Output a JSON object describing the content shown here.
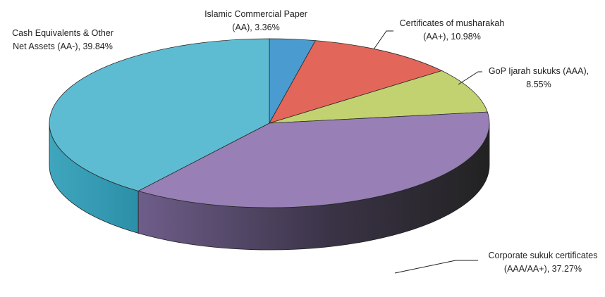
{
  "chart_data": {
    "type": "pie",
    "style": "3d",
    "legend": "none",
    "slices": [
      {
        "name": "Islamic Commercial Paper",
        "rating": "(AA)",
        "value": 3.36,
        "label_line1": "Islamic Commercial Paper",
        "label_line2": "(AA), 3.36%",
        "color": "#4A9BD0"
      },
      {
        "name": "Certificates of musharakah",
        "rating": "(AA+)",
        "value": 10.98,
        "label_line1": "Certificates of musharakah",
        "label_line2": "(AA+), 10.98%",
        "color": "#E2665A"
      },
      {
        "name": "GoP Ijarah sukuks",
        "rating": "(AAA)",
        "value": 8.55,
        "label_line1": "GoP Ijarah sukuks (AAA),",
        "label_line2": "8.55%",
        "color": "#C3D270"
      },
      {
        "name": "Corporate sukuk certificates",
        "rating": "(AAA/AA+)",
        "value": 37.27,
        "label_line1": "Corporate sukuk certificates",
        "label_line2": "(AAA/AA+), 37.27%",
        "color": "#9880B6"
      },
      {
        "name": "Cash Equivalents & Other Net Assets",
        "rating": "(AA-)",
        "value": 39.84,
        "label_line1": "Cash Equivalents & Other",
        "label_line2": "Net Assets (AA-), 39.84%",
        "color": "#5EBCD2"
      }
    ]
  }
}
